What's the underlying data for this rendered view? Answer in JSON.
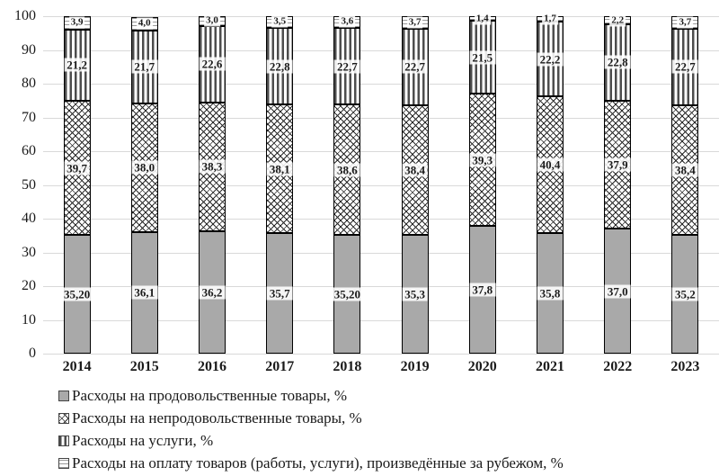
{
  "chart_data": {
    "type": "bar",
    "stacked": true,
    "title": "",
    "xlabel": "",
    "ylabel": "",
    "ylim": [
      0,
      100
    ],
    "yticks": [
      0,
      10,
      20,
      30,
      40,
      50,
      60,
      70,
      80,
      90,
      100
    ],
    "grid": true,
    "legend_position": "bottom",
    "categories": [
      "2014",
      "2015",
      "2016",
      "2017",
      "2018",
      "2019",
      "2020",
      "2021",
      "2022",
      "2023"
    ],
    "series": [
      {
        "name": "Расходы на продовольственные товары, %",
        "pattern": "solid-gray",
        "values": [
          35.2,
          36.1,
          36.2,
          35.7,
          35.2,
          35.3,
          37.8,
          35.8,
          37.0,
          35.2
        ],
        "labels": [
          "35,20",
          "36,1",
          "36,2",
          "35,7",
          "35,20",
          "35,3",
          "37,8",
          "35,8",
          "37,0",
          "35,2"
        ]
      },
      {
        "name": "Расходы на непродовольственные товары, %",
        "pattern": "crosshatch",
        "values": [
          39.7,
          38.0,
          38.3,
          38.1,
          38.6,
          38.4,
          39.3,
          40.4,
          37.9,
          38.4
        ],
        "labels": [
          "39,7",
          "38,0",
          "38,3",
          "38,1",
          "38,6",
          "38,4",
          "39,3",
          "40,4",
          "37,9",
          "38,4"
        ]
      },
      {
        "name": "Расходы на услуги, %",
        "pattern": "vertical-lines",
        "values": [
          21.2,
          21.7,
          22.6,
          22.8,
          22.7,
          22.7,
          21.5,
          22.2,
          22.8,
          22.7
        ],
        "labels": [
          "21,2",
          "21,7",
          "22,6",
          "22,8",
          "22,7",
          "22,7",
          "21,5",
          "22,2",
          "22,8",
          "22,7"
        ]
      },
      {
        "name": "Расходы на оплату товаров (работы, услуги), произведённые за рубежом,  %",
        "pattern": "blank",
        "values": [
          3.9,
          4.0,
          3.0,
          3.5,
          3.6,
          3.7,
          1.4,
          1.7,
          2.2,
          3.7
        ],
        "labels": [
          "3,9",
          "4,0",
          "3,0",
          "3,5",
          "3,6",
          "3,7",
          "1,4",
          "1,7",
          "2,2",
          "3,7"
        ]
      }
    ]
  },
  "colors": {
    "bar_fill_gray": "#a9a9a9",
    "segment_border": "#000000",
    "gridline": "#d9d9d9",
    "text": "#1a1a1a",
    "label_background": "#ffffff"
  }
}
